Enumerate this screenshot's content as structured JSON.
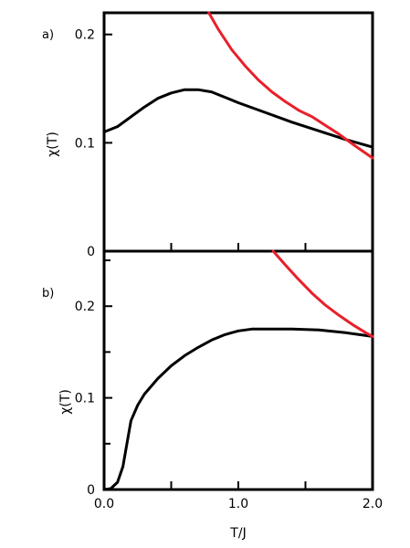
{
  "chart_data": [
    {
      "panel_label": "a)",
      "type": "line",
      "ylabel": "χ(T)",
      "xlim": [
        0,
        2.0
      ],
      "ylim": [
        0,
        0.22
      ],
      "ytick_labels": [
        "0",
        "0.1",
        "0.2"
      ],
      "ytick_values": [
        0,
        0.1,
        0.2
      ],
      "xticks_values": [
        0.5,
        1.0,
        1.5
      ],
      "yminor_values": [],
      "series": [
        {
          "color": "#000000",
          "x": [
            0.0,
            0.1,
            0.2,
            0.3,
            0.4,
            0.5,
            0.6,
            0.7,
            0.8,
            0.9,
            1.0,
            1.2,
            1.4,
            1.6,
            1.8,
            2.0
          ],
          "y": [
            0.11,
            0.115,
            0.124,
            0.133,
            0.141,
            0.146,
            0.149,
            0.149,
            0.147,
            0.142,
            0.137,
            0.128,
            0.119,
            0.111,
            0.103,
            0.096
          ]
        },
        {
          "color": "#e8202a",
          "x": [
            0.78,
            0.85,
            0.95,
            1.05,
            1.15,
            1.25,
            1.35,
            1.45,
            1.55,
            1.65,
            1.75,
            1.85,
            2.0
          ],
          "y": [
            0.22,
            0.205,
            0.186,
            0.171,
            0.158,
            0.147,
            0.138,
            0.13,
            0.124,
            0.116,
            0.108,
            0.099,
            0.086
          ]
        }
      ]
    },
    {
      "panel_label": "b)",
      "type": "line",
      "ylabel": "χ(T)",
      "xlabel": "T/J",
      "xlim": [
        0,
        2.0
      ],
      "ylim": [
        0,
        0.26
      ],
      "ytick_labels": [
        "0",
        "0.1",
        "0.2"
      ],
      "ytick_values": [
        0,
        0.1,
        0.2
      ],
      "xtick_labels": [
        "0.0",
        "1.0",
        "2.0"
      ],
      "xtick_label_values": [
        0,
        1.0,
        2.0
      ],
      "xticks_values": [
        0.5,
        1.0,
        1.5
      ],
      "yminor_values": [
        0.05,
        0.15,
        0.25
      ],
      "series": [
        {
          "color": "#000000",
          "x": [
            0.0,
            0.05,
            0.1,
            0.14,
            0.17,
            0.2,
            0.25,
            0.3,
            0.4,
            0.5,
            0.6,
            0.7,
            0.8,
            0.9,
            1.0,
            1.1,
            1.2,
            1.4,
            1.6,
            1.8,
            2.0
          ],
          "y": [
            0.0,
            0.001,
            0.008,
            0.025,
            0.05,
            0.075,
            0.092,
            0.104,
            0.121,
            0.135,
            0.146,
            0.155,
            0.163,
            0.169,
            0.173,
            0.175,
            0.175,
            0.175,
            0.174,
            0.171,
            0.167
          ]
        },
        {
          "color": "#e8202a",
          "x": [
            1.26,
            1.35,
            1.45,
            1.55,
            1.65,
            1.75,
            1.85,
            1.95,
            2.0
          ],
          "y": [
            0.26,
            0.245,
            0.229,
            0.214,
            0.201,
            0.19,
            0.18,
            0.171,
            0.167
          ]
        }
      ]
    }
  ]
}
